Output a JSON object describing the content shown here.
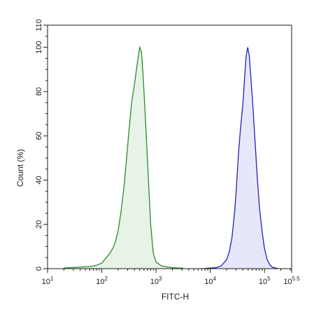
{
  "chart_data": {
    "type": "area",
    "title": "",
    "xlabel": "FITC-H",
    "ylabel": "Count (%)",
    "x_scale": "log10",
    "xlim": [
      1,
      5.5
    ],
    "ylim": [
      0,
      110
    ],
    "x_ticks": [
      {
        "value": 1,
        "base": "10",
        "exp": "1"
      },
      {
        "value": 2,
        "base": "10",
        "exp": "2"
      },
      {
        "value": 3,
        "base": "10",
        "exp": "3"
      },
      {
        "value": 4,
        "base": "10",
        "exp": "4"
      },
      {
        "value": 5,
        "base": "10",
        "exp": "5"
      },
      {
        "value": 5.5,
        "base": "10",
        "exp": "5.5"
      }
    ],
    "y_ticks": [
      0,
      20,
      40,
      60,
      80,
      100,
      110
    ],
    "grid": false,
    "series": [
      {
        "color": "#2e8b2e",
        "fill": "#e6f3e6",
        "points": [
          [
            1.3,
            0.3
          ],
          [
            1.6,
            0.7
          ],
          [
            1.8,
            1.0
          ],
          [
            1.9,
            1.5
          ],
          [
            2.0,
            2.5
          ],
          [
            2.05,
            4.0
          ],
          [
            2.1,
            5.5
          ],
          [
            2.15,
            7.0
          ],
          [
            2.2,
            9.0
          ],
          [
            2.25,
            12.0
          ],
          [
            2.3,
            17.0
          ],
          [
            2.35,
            25.0
          ],
          [
            2.4,
            35.0
          ],
          [
            2.45,
            48.0
          ],
          [
            2.5,
            62.0
          ],
          [
            2.55,
            75.0
          ],
          [
            2.6,
            83.0
          ],
          [
            2.65,
            92.0
          ],
          [
            2.7,
            100.0
          ],
          [
            2.73,
            98.0
          ],
          [
            2.76,
            88.0
          ],
          [
            2.8,
            70.0
          ],
          [
            2.85,
            45.0
          ],
          [
            2.9,
            20.0
          ],
          [
            2.95,
            7.0
          ],
          [
            3.0,
            3.0
          ],
          [
            3.1,
            1.2
          ],
          [
            3.3,
            0.4
          ],
          [
            3.5,
            0.2
          ]
        ]
      },
      {
        "color": "#2323b4",
        "fill": "#e7e7fb",
        "points": [
          [
            3.9,
            0.1
          ],
          [
            4.1,
            0.4
          ],
          [
            4.2,
            1.2
          ],
          [
            4.3,
            4.0
          ],
          [
            4.35,
            7.5
          ],
          [
            4.4,
            14.0
          ],
          [
            4.45,
            26.0
          ],
          [
            4.48,
            36.0
          ],
          [
            4.52,
            52.0
          ],
          [
            4.56,
            64.0
          ],
          [
            4.6,
            74.0
          ],
          [
            4.63,
            85.0
          ],
          [
            4.66,
            96.0
          ],
          [
            4.69,
            100.0
          ],
          [
            4.72,
            96.0
          ],
          [
            4.75,
            86.0
          ],
          [
            4.79,
            72.0
          ],
          [
            4.83,
            56.0
          ],
          [
            4.87,
            40.0
          ],
          [
            4.91,
            27.0
          ],
          [
            4.96,
            16.0
          ],
          [
            5.0,
            9.0
          ],
          [
            5.05,
            4.0
          ],
          [
            5.1,
            1.6
          ],
          [
            5.15,
            0.6
          ],
          [
            5.25,
            0.1
          ]
        ]
      }
    ]
  }
}
